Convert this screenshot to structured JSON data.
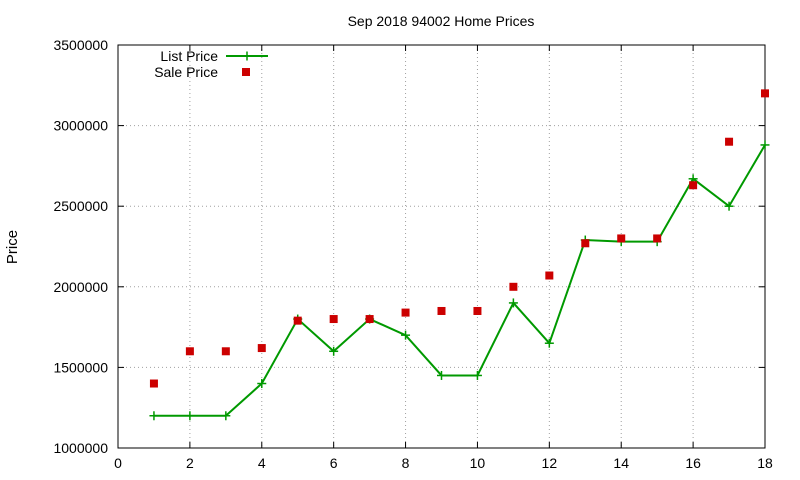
{
  "chart_data": {
    "type": "line",
    "title": "Sep 2018 94002 Home Prices",
    "xlabel": "",
    "ylabel": "Price",
    "xlim": [
      0,
      18
    ],
    "ylim": [
      1000000,
      3500000
    ],
    "x_ticks": [
      0,
      2,
      4,
      6,
      8,
      10,
      12,
      14,
      16,
      18
    ],
    "y_ticks": [
      1000000,
      1500000,
      2000000,
      2500000,
      3000000,
      3500000
    ],
    "x_tick_labels": [
      "0",
      "2",
      "4",
      "6",
      "8",
      "10",
      "12",
      "14",
      "16",
      "18"
    ],
    "y_tick_labels": [
      "1000000",
      "1500000",
      "2000000",
      "2500000",
      "3000000",
      "3500000"
    ],
    "grid": true,
    "legend_position": "top-left",
    "x": [
      1,
      2,
      3,
      4,
      5,
      6,
      7,
      8,
      9,
      10,
      11,
      12,
      13,
      14,
      15,
      16,
      17,
      18
    ],
    "series": [
      {
        "name": "List Price",
        "style": "line-points",
        "marker": "plus",
        "color": "#009900",
        "values": [
          1200000,
          1200000,
          1200000,
          1400000,
          1800000,
          1600000,
          1800000,
          1700000,
          1450000,
          1450000,
          1900000,
          1650000,
          2290000,
          2280000,
          2280000,
          2670000,
          2500000,
          2880000
        ]
      },
      {
        "name": "Sale Price",
        "style": "points",
        "marker": "square",
        "color": "#cc0000",
        "values": [
          1400000,
          1600000,
          1600000,
          1620000,
          1790000,
          1800000,
          1800000,
          1840000,
          1850000,
          1850000,
          2000000,
          2070000,
          2270000,
          2300000,
          2300000,
          2630000,
          2900000,
          3200000
        ]
      }
    ]
  }
}
